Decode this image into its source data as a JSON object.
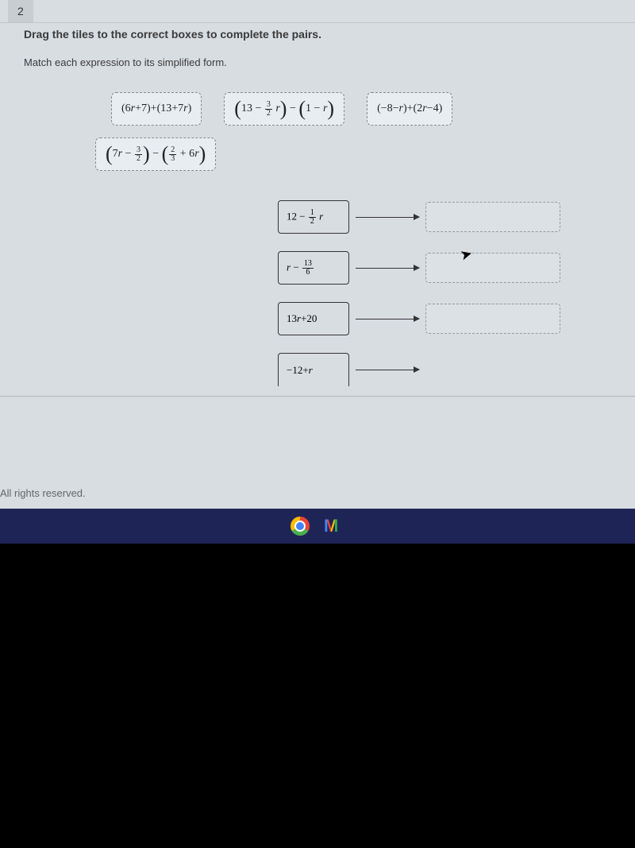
{
  "question": {
    "number": "2",
    "instruction": "Drag the tiles to the correct boxes to complete the pairs.",
    "sub_instruction": "Match each expression to its simplified form."
  },
  "tiles": {
    "t1": {
      "plain": "(6r+7)+(13+7r)",
      "parts": {
        "a": "(6",
        "r1": "r",
        "b": "+7)+(13+7",
        "r2": "r",
        "c": ")"
      }
    },
    "t2": {
      "plain": "(13 − 3/2 r) − (1 − r)",
      "parts": {
        "a": "13 − ",
        "frac_n": "3",
        "frac_d": "2",
        "b": " r",
        "c": " − ",
        "d": "1 − ",
        "r": "r"
      }
    },
    "t3": {
      "plain": "(−8−r)+(2r−4)",
      "parts": {
        "a": "(−8−",
        "r1": "r",
        "b": ")+(2",
        "r2": "r",
        "c": "−4)"
      }
    },
    "t4": {
      "plain": "(7r − 3/2) − (2/3 + 6r)",
      "parts": {
        "a": "7",
        "r1": "r",
        "b": " − ",
        "f1n": "3",
        "f1d": "2",
        "c": " − ",
        "f2n": "2",
        "f2d": "3",
        "d": " + 6",
        "r2": "r"
      }
    }
  },
  "answers": {
    "a1": {
      "plain": "12 − 1/2 r",
      "parts": {
        "a": "12 − ",
        "fn": "1",
        "fd": "2",
        "b": " r"
      }
    },
    "a2": {
      "plain": "r − 13/6",
      "parts": {
        "a": "r",
        "b": " − ",
        "fn": "13",
        "fd": "6"
      }
    },
    "a3": {
      "plain": "13r+20",
      "parts": {
        "a": "13",
        "r": "r",
        "b": "+20"
      }
    },
    "a4": {
      "plain": "−12+r",
      "parts": {
        "a": "−12+",
        "r": "r"
      }
    }
  },
  "footer": "All rights reserved.",
  "colors": {
    "screen_bg": "#d8dde2",
    "tile_bg": "#e8edf2",
    "taskbar_bg": "#1f2456",
    "body_bg": "#000000"
  }
}
